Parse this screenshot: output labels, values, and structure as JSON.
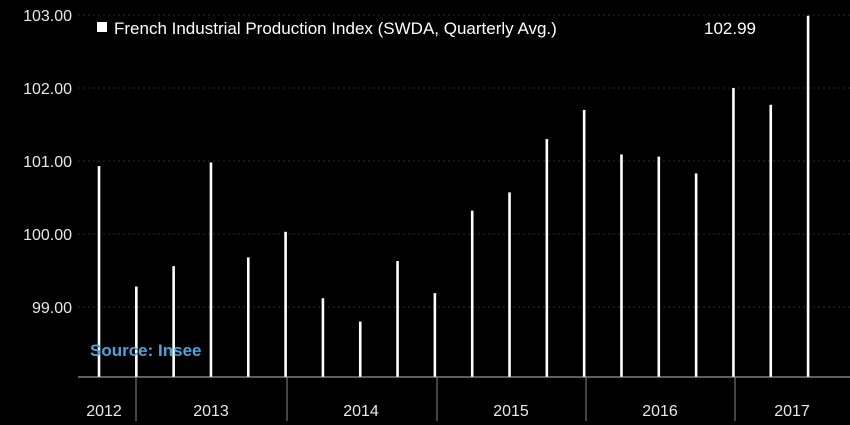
{
  "chart_data": {
    "type": "bar",
    "title": "French Industrial Production Index (SWDA, Quarterly Avg.)",
    "legend_value": "102.99",
    "source": "Source: Insee",
    "ylim": [
      98.0,
      103.0
    ],
    "yticks": [
      99.0,
      100.0,
      101.0,
      102.0,
      103.0
    ],
    "ytick_labels": [
      "99.00",
      "100.00",
      "101.00",
      "102.00",
      "103.00"
    ],
    "year_labels": [
      "2012",
      "2013",
      "2014",
      "2015",
      "2016",
      "2017"
    ],
    "grid": true,
    "legend_position": "top-left",
    "colors": {
      "background": "#000000",
      "bar": "#ffffff",
      "source": "#4fa3d8",
      "axis": "#bbbbbb"
    },
    "series": [
      {
        "name": "French Industrial Production Index (SWDA, Quarterly Avg.)",
        "x": [
          "2012 Q4",
          "2013 Q1",
          "2013 Q2",
          "2013 Q3",
          "2013 Q4",
          "2014 Q1",
          "2014 Q2",
          "2014 Q3",
          "2014 Q4",
          "2015 Q1",
          "2015 Q2",
          "2015 Q3",
          "2015 Q4",
          "2016 Q1",
          "2016 Q2",
          "2016 Q3",
          "2016 Q4",
          "2017 Q1",
          "2017 Q2",
          "2017 Q3"
        ],
        "values": [
          100.93,
          99.28,
          99.56,
          100.98,
          99.68,
          100.03,
          99.12,
          98.8,
          99.63,
          99.19,
          100.32,
          100.57,
          101.3,
          101.7,
          101.09,
          101.06,
          100.83,
          102.0,
          101.77,
          102.99
        ]
      }
    ]
  }
}
